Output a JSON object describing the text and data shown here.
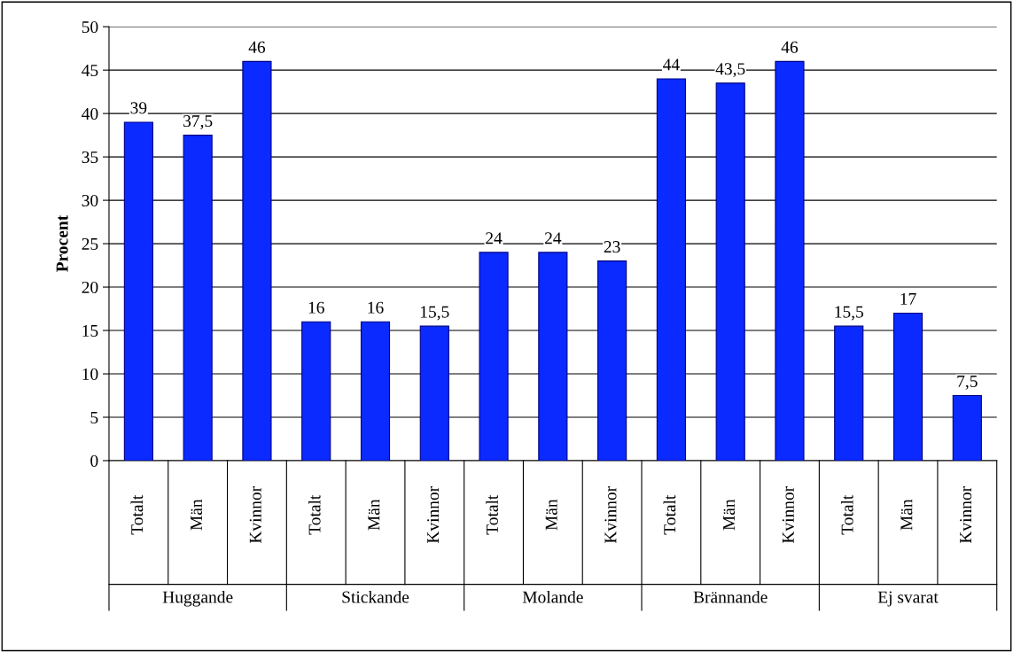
{
  "chart_data": {
    "type": "bar",
    "ylabel": "Procent",
    "categories": [
      "Totalt",
      "Män",
      "Kvinnor",
      "Totalt",
      "Män",
      "Kvinnor",
      "Totalt",
      "Män",
      "Kvinnor",
      "Totalt",
      "Män",
      "Kvinnor",
      "Totalt",
      "Män",
      "Kvinnor"
    ],
    "values": [
      39,
      37.5,
      46,
      16,
      16,
      15.5,
      24,
      24,
      23,
      44,
      43.5,
      46,
      15.5,
      17,
      7.5
    ],
    "value_labels": [
      "39",
      "37,5",
      "46",
      "16",
      "16",
      "15,5",
      "24",
      "24",
      "23",
      "44",
      "43,5",
      "46",
      "15,5",
      "17",
      "7,5"
    ],
    "annotations": [
      "Huggande",
      "Stickande",
      "Molande",
      "Brännande",
      "Ej svarat"
    ],
    "color": "#0a2aff",
    "ylim": [
      0,
      50
    ],
    "yticks": [
      0,
      5,
      10,
      15,
      20,
      25,
      30,
      35,
      40,
      45,
      50
    ],
    "grid": "y"
  }
}
